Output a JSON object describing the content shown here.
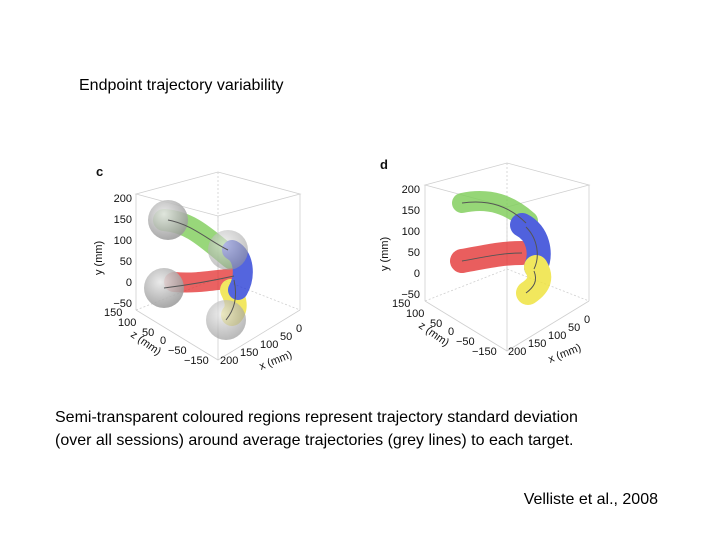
{
  "slide": {
    "heading": "Endpoint trajectory variability",
    "caption_line1": "Semi-transparent coloured regions represent trajectory standard deviation",
    "caption_line2": "(over all sessions) around average trajectories (grey lines) to each target.",
    "citation": "Velliste et al., 2008"
  },
  "panel_c": {
    "label": "c",
    "y_axis_label": "y (mm)",
    "y_ticks": [
      "200",
      "150",
      "100",
      "50",
      "0",
      "−50"
    ],
    "z_axis_label": "z (mm)",
    "z_ticks": [
      "150",
      "100",
      "50",
      "0",
      "−50",
      "−150"
    ],
    "x_axis_label": "x (mm)",
    "x_ticks": [
      "200",
      "150",
      "100",
      "50",
      "0"
    ]
  },
  "panel_d": {
    "label": "d",
    "y_axis_label": "y (mm)",
    "y_ticks": [
      "200",
      "150",
      "100",
      "50",
      "0",
      "−50"
    ],
    "z_axis_label": "z (mm)",
    "z_ticks": [
      "150",
      "100",
      "50",
      "0",
      "−50",
      "−150"
    ],
    "x_axis_label": "x (mm)",
    "x_ticks": [
      "200",
      "150",
      "100",
      "50",
      "0"
    ]
  },
  "colors": {
    "green": "#7fce5a",
    "red": "#e53b3b",
    "blue": "#2a3fd6",
    "yellow": "#efe23a",
    "grey_sphere": "#bdbdbd"
  }
}
